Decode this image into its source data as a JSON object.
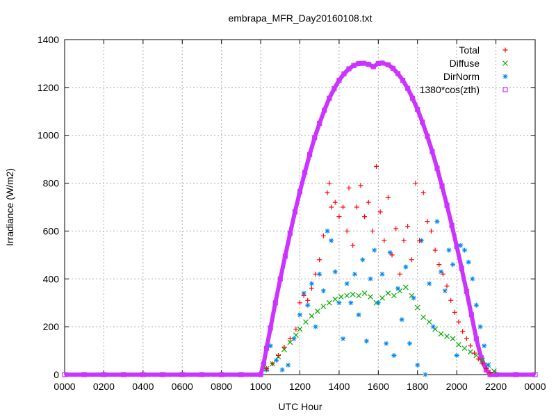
{
  "chart_data": {
    "type": "scatter",
    "title": "embrapa_MFR_Day20160108.txt",
    "xlabel": "UTC Hour",
    "ylabel": "Irradiance (W/m2)",
    "xlim": [
      0,
      24
    ],
    "ylim": [
      0,
      1400
    ],
    "xticks": [
      {
        "v": 0,
        "label": "0000"
      },
      {
        "v": 2,
        "label": "0200"
      },
      {
        "v": 4,
        "label": "0400"
      },
      {
        "v": 6,
        "label": "0600"
      },
      {
        "v": 8,
        "label": "0800"
      },
      {
        "v": 10,
        "label": "1000"
      },
      {
        "v": 12,
        "label": "1200"
      },
      {
        "v": 14,
        "label": "1400"
      },
      {
        "v": 16,
        "label": "1600"
      },
      {
        "v": 18,
        "label": "1800"
      },
      {
        "v": 20,
        "label": "2000"
      },
      {
        "v": 22,
        "label": "2200"
      },
      {
        "v": 24,
        "label": "0000"
      }
    ],
    "yticks": [
      0,
      200,
      400,
      600,
      800,
      1000,
      1200,
      1400
    ],
    "grid": true,
    "legend_position": "top-right",
    "series": [
      {
        "name": "Total",
        "marker": "plus",
        "color": "#ff0000",
        "points": [
          [
            10.3,
            25
          ],
          [
            10.6,
            45
          ],
          [
            10.9,
            80
          ],
          [
            11.2,
            115
          ],
          [
            11.5,
            150
          ],
          [
            11.8,
            190
          ],
          [
            12.0,
            300
          ],
          [
            12.2,
            330
          ],
          [
            12.4,
            310
          ],
          [
            12.6,
            360
          ],
          [
            12.8,
            420
          ],
          [
            13.0,
            480
          ],
          [
            13.2,
            580
          ],
          [
            13.4,
            760
          ],
          [
            13.5,
            800
          ],
          [
            13.6,
            700
          ],
          [
            13.8,
            720
          ],
          [
            14.0,
            660
          ],
          [
            14.2,
            700
          ],
          [
            14.4,
            600
          ],
          [
            14.5,
            780
          ],
          [
            14.7,
            540
          ],
          [
            14.9,
            700
          ],
          [
            15.1,
            790
          ],
          [
            15.3,
            660
          ],
          [
            15.5,
            720
          ],
          [
            15.7,
            600
          ],
          [
            15.9,
            870
          ],
          [
            16.1,
            680
          ],
          [
            16.3,
            560
          ],
          [
            16.5,
            740
          ],
          [
            16.7,
            500
          ],
          [
            16.9,
            610
          ],
          [
            17.1,
            420
          ],
          [
            17.3,
            560
          ],
          [
            17.5,
            620
          ],
          [
            17.7,
            480
          ],
          [
            17.9,
            800
          ],
          [
            18.1,
            560
          ],
          [
            18.3,
            760
          ],
          [
            18.5,
            640
          ],
          [
            18.7,
            600
          ],
          [
            18.9,
            520
          ],
          [
            19.1,
            460
          ],
          [
            19.3,
            420
          ],
          [
            19.5,
            370
          ],
          [
            19.7,
            310
          ],
          [
            19.9,
            260
          ],
          [
            20.1,
            220
          ],
          [
            20.3,
            180
          ],
          [
            20.5,
            150
          ],
          [
            20.7,
            120
          ],
          [
            20.9,
            90
          ],
          [
            21.1,
            65
          ],
          [
            21.3,
            45
          ],
          [
            21.5,
            25
          ],
          [
            21.7,
            10
          ]
        ]
      },
      {
        "name": "Diffuse",
        "marker": "cross",
        "color": "#00aa00",
        "points": [
          [
            10.3,
            25
          ],
          [
            10.6,
            45
          ],
          [
            10.9,
            75
          ],
          [
            11.2,
            105
          ],
          [
            11.5,
            135
          ],
          [
            11.8,
            165
          ],
          [
            12.0,
            190
          ],
          [
            12.3,
            220
          ],
          [
            12.6,
            245
          ],
          [
            12.9,
            265
          ],
          [
            13.2,
            285
          ],
          [
            13.5,
            300
          ],
          [
            13.8,
            315
          ],
          [
            14.1,
            325
          ],
          [
            14.4,
            330
          ],
          [
            14.7,
            335
          ],
          [
            15.0,
            330
          ],
          [
            15.3,
            340
          ],
          [
            15.6,
            325
          ],
          [
            15.9,
            300
          ],
          [
            16.2,
            320
          ],
          [
            16.5,
            340
          ],
          [
            16.8,
            330
          ],
          [
            17.1,
            350
          ],
          [
            17.4,
            365
          ],
          [
            17.7,
            330
          ],
          [
            18.0,
            280
          ],
          [
            18.3,
            240
          ],
          [
            18.6,
            220
          ],
          [
            18.9,
            190
          ],
          [
            19.2,
            170
          ],
          [
            19.5,
            160
          ],
          [
            19.8,
            150
          ],
          [
            20.1,
            125
          ],
          [
            20.4,
            110
          ],
          [
            20.7,
            95
          ],
          [
            21.0,
            80
          ],
          [
            21.3,
            60
          ],
          [
            21.6,
            40
          ],
          [
            21.9,
            15
          ]
        ]
      },
      {
        "name": "DirNorm",
        "marker": "star",
        "color": "#0088ee",
        "points": [
          [
            10.3,
            20
          ],
          [
            10.5,
            120
          ],
          [
            10.8,
            60
          ],
          [
            11.1,
            20
          ],
          [
            11.4,
            40
          ],
          [
            11.7,
            150
          ],
          [
            12.0,
            250
          ],
          [
            12.2,
            340
          ],
          [
            12.4,
            290
          ],
          [
            12.6,
            380
          ],
          [
            12.8,
            200
          ],
          [
            13.0,
            420
          ],
          [
            13.2,
            350
          ],
          [
            13.4,
            600
          ],
          [
            13.6,
            560
          ],
          [
            13.8,
            430
          ],
          [
            14.0,
            300
          ],
          [
            14.2,
            150
          ],
          [
            14.4,
            380
          ],
          [
            14.6,
            300
          ],
          [
            14.8,
            420
          ],
          [
            15.0,
            250
          ],
          [
            15.2,
            480
          ],
          [
            15.4,
            140
          ],
          [
            15.6,
            400
          ],
          [
            15.8,
            520
          ],
          [
            16.0,
            300
          ],
          [
            16.2,
            420
          ],
          [
            16.4,
            130
          ],
          [
            16.6,
            510
          ],
          [
            16.8,
            80
          ],
          [
            17.0,
            360
          ],
          [
            17.2,
            230
          ],
          [
            17.4,
            450
          ],
          [
            17.6,
            130
          ],
          [
            17.8,
            320
          ],
          [
            18.0,
            40
          ],
          [
            18.2,
            560
          ],
          [
            18.4,
            0
          ],
          [
            18.6,
            380
          ],
          [
            18.8,
            200
          ],
          [
            19.0,
            640
          ],
          [
            19.2,
            430
          ],
          [
            19.4,
            350
          ],
          [
            19.6,
            520
          ],
          [
            19.8,
            460
          ],
          [
            20.0,
            80
          ],
          [
            20.2,
            540
          ],
          [
            20.4,
            520
          ],
          [
            20.6,
            470
          ],
          [
            20.8,
            400
          ],
          [
            21.0,
            290
          ],
          [
            21.2,
            200
          ],
          [
            21.4,
            120
          ],
          [
            21.6,
            40
          ]
        ]
      },
      {
        "name": "1380*cos(zth)",
        "marker": "square",
        "color": "#cc33ff",
        "points": [
          [
            0,
            0
          ],
          [
            1,
            0
          ],
          [
            2,
            0
          ],
          [
            3,
            0
          ],
          [
            4,
            0
          ],
          [
            5,
            0
          ],
          [
            6,
            0
          ],
          [
            7,
            0
          ],
          [
            8,
            0
          ],
          [
            9,
            0
          ],
          [
            10.0,
            0
          ],
          [
            10.15,
            45
          ],
          [
            10.3,
            110
          ],
          [
            10.5,
            195
          ],
          [
            10.75,
            300
          ],
          [
            11.0,
            400
          ],
          [
            11.25,
            495
          ],
          [
            11.5,
            590
          ],
          [
            11.75,
            680
          ],
          [
            12.0,
            765
          ],
          [
            12.25,
            845
          ],
          [
            12.5,
            920
          ],
          [
            12.75,
            990
          ],
          [
            13.0,
            1050
          ],
          [
            13.25,
            1105
          ],
          [
            13.5,
            1155
          ],
          [
            13.75,
            1195
          ],
          [
            14.0,
            1230
          ],
          [
            14.25,
            1257
          ],
          [
            14.5,
            1278
          ],
          [
            14.75,
            1292
          ],
          [
            15.0,
            1300
          ],
          [
            15.25,
            1301
          ],
          [
            15.5,
            1297
          ],
          [
            15.75,
            1287
          ],
          [
            16.0,
            1300
          ],
          [
            16.2,
            1302
          ],
          [
            16.5,
            1295
          ],
          [
            16.75,
            1280
          ],
          [
            17.0,
            1258
          ],
          [
            17.25,
            1230
          ],
          [
            17.5,
            1196
          ],
          [
            17.75,
            1155
          ],
          [
            18.0,
            1108
          ],
          [
            18.25,
            1055
          ],
          [
            18.5,
            996
          ],
          [
            18.75,
            932
          ],
          [
            19.0,
            862
          ],
          [
            19.25,
            787
          ],
          [
            19.5,
            708
          ],
          [
            19.75,
            624
          ],
          [
            20.0,
            536
          ],
          [
            20.25,
            444
          ],
          [
            20.5,
            348
          ],
          [
            20.75,
            250
          ],
          [
            21.0,
            150
          ],
          [
            21.25,
            70
          ],
          [
            21.5,
            20
          ],
          [
            21.7,
            0
          ],
          [
            22,
            0
          ],
          [
            23,
            0
          ],
          [
            24,
            0
          ]
        ]
      }
    ]
  }
}
